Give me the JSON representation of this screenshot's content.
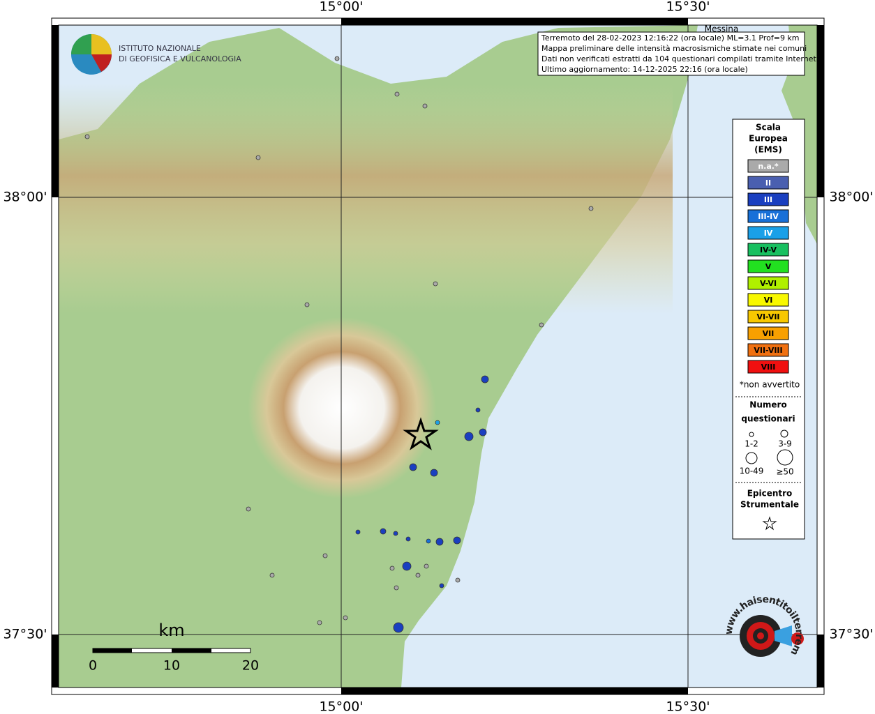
{
  "map": {
    "lon_labels": [
      "15°00'",
      "15°30'"
    ],
    "lat_labels": [
      "38°00'",
      "37°30'"
    ],
    "place": "Messina",
    "info": [
      "Terremoto del 28-02-2023 12:16:22 (ora locale) ML=3.1 Prof=9 km",
      "Mappa preliminare delle intensità macrosismiche stimate nei comuni",
      "Dati non verificati estratti da 104 questionari compilati tramite Internet.",
      "Ultimo aggiornamento: 14-12-2025 22:16 (ora locale)"
    ],
    "institute": [
      "ISTITUTO NAZIONALE",
      "DI GEOFISICA E VULCANOLOGIA"
    ],
    "legend": {
      "title": [
        "Scala",
        "Europea",
        "(EMS)"
      ],
      "classes": [
        {
          "label": "n.a.*",
          "color": "#aaaaaa"
        },
        {
          "label": "II",
          "color": "#4a5fb0"
        },
        {
          "label": "III",
          "color": "#1a3fc0"
        },
        {
          "label": "III-IV",
          "color": "#1870d8"
        },
        {
          "label": "IV",
          "color": "#1aa0e8"
        },
        {
          "label": "IV-V",
          "color": "#18c060"
        },
        {
          "label": "V",
          "color": "#22e020"
        },
        {
          "label": "V-VI",
          "color": "#b0f000"
        },
        {
          "label": "VI",
          "color": "#f8f800"
        },
        {
          "label": "VI-VII",
          "color": "#f8c800"
        },
        {
          "label": "VII",
          "color": "#f8a000"
        },
        {
          "label": "VII-VIII",
          "color": "#f07010"
        },
        {
          "label": "VIII",
          "color": "#f01010"
        }
      ],
      "note": "*non avvertito",
      "count_title": [
        "Numero",
        "questionari"
      ],
      "counts": [
        "1-2",
        "3-9",
        "10-49",
        "≥50"
      ],
      "epicenter": [
        "Epicentro",
        "Strumentale"
      ]
    },
    "scale": {
      "unit": "km",
      "ticks": [
        "0",
        "10",
        "20"
      ]
    },
    "logo": "www.haisentitoilterremoto.it"
  }
}
